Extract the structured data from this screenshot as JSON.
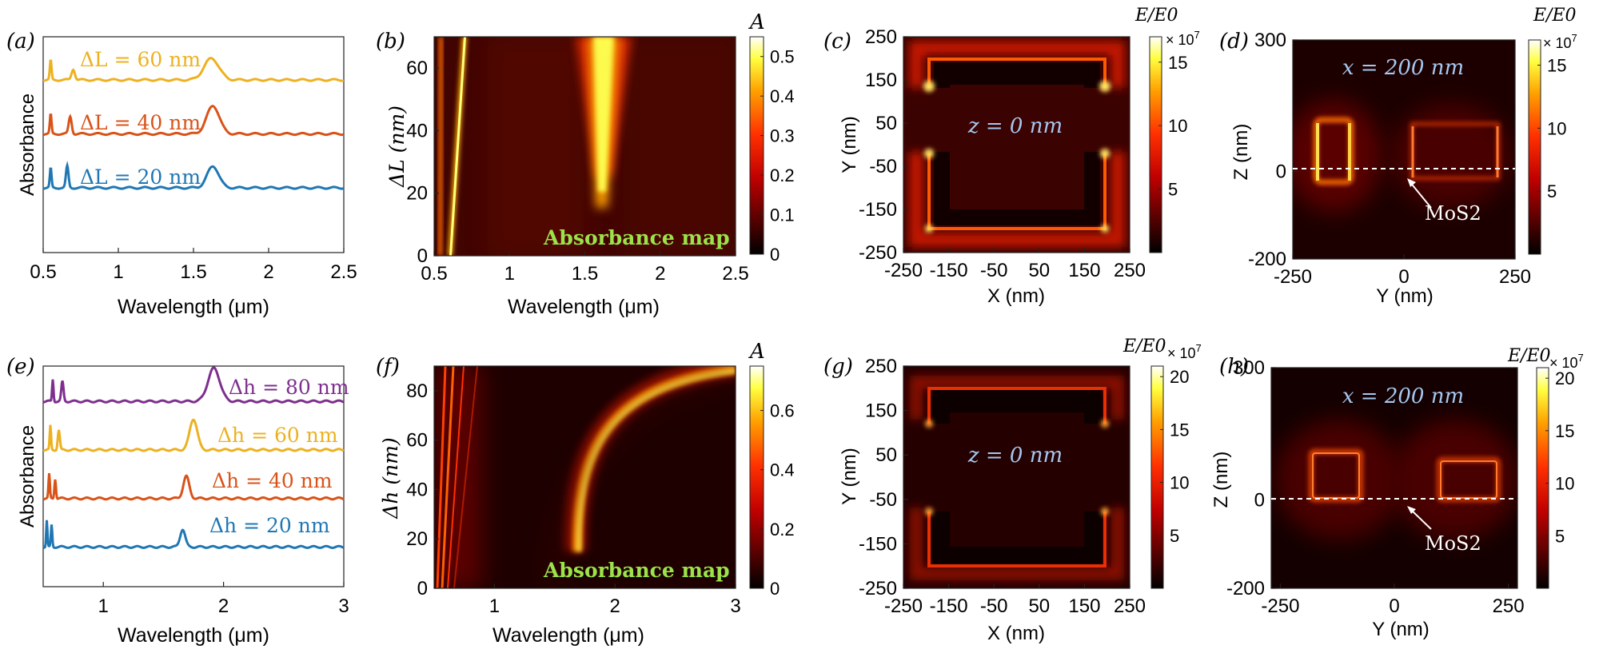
{
  "colors": {
    "blue": "#1f77b4",
    "orange": "#d95319",
    "yellow": "#edb120",
    "purple": "#7e2f8e",
    "green_text": "#9be34a",
    "light_blue_text": "#a6c8f0",
    "white_text": "#ffffff"
  },
  "chart_data": [
    {
      "panel": "(a)",
      "type": "line",
      "ylabel": "Absorbance",
      "xlabel": "Wavelength (μm)",
      "xlim": [
        0.5,
        2.5
      ],
      "xticks": [
        "0.5",
        "1",
        "1.5",
        "2",
        "2.5"
      ],
      "series": [
        {
          "name": "ΔL = 20 nm",
          "color": "#1f77b4",
          "baseline": 0.3,
          "peaks": [
            [
              0.55,
              0.09,
              0.008
            ],
            [
              0.66,
              0.1,
              0.012
            ],
            [
              1.63,
              0.1,
              0.055
            ]
          ]
        },
        {
          "name": "ΔL = 40 nm",
          "color": "#d95319",
          "baseline": 0.55,
          "peaks": [
            [
              0.55,
              0.09,
              0.008
            ],
            [
              0.68,
              0.08,
              0.014
            ],
            [
              1.63,
              0.13,
              0.06
            ]
          ]
        },
        {
          "name": "ΔL = 60 nm",
          "color": "#edb120",
          "baseline": 0.8,
          "peaks": [
            [
              0.55,
              0.09,
              0.008
            ],
            [
              0.7,
              0.05,
              0.016
            ],
            [
              1.62,
              0.1,
              0.07
            ]
          ]
        }
      ]
    },
    {
      "panel": "(b)",
      "type": "heatmap",
      "ylabel": "ΔL (nm)",
      "xlabel": "Wavelength (μm)",
      "xlim": [
        0.5,
        2.5
      ],
      "ylim": [
        0,
        70
      ],
      "xticks": [
        "0.5",
        "1",
        "1.5",
        "2",
        "2.5"
      ],
      "yticks": [
        "0",
        "20",
        "40",
        "60"
      ],
      "colorbar": {
        "label": "A",
        "ticks": [
          "0",
          "0.1",
          "0.2",
          "0.3",
          "0.4",
          "0.5"
        ],
        "max": 0.55
      },
      "annotation": "Absorbance map"
    },
    {
      "panel": "(c)",
      "type": "heatmap",
      "ylabel": "Y (nm)",
      "xlabel": "X (nm)",
      "xticks": [
        "-250",
        "-150",
        "-50",
        "50",
        "150",
        "250"
      ],
      "yticks": [
        "250",
        "150",
        "50",
        "-50",
        "-150",
        "-250"
      ],
      "colorbar": {
        "label": "E/E0",
        "multiplier": "× 10",
        "exponent": "7",
        "ticks": [
          "5",
          "10",
          "15"
        ],
        "max": 17
      },
      "annotation": "z = 0 nm"
    },
    {
      "panel": "(d)",
      "type": "heatmap",
      "ylabel": "Z (nm)",
      "xlabel": "Y (nm)",
      "xticks": [
        "-250",
        "0",
        "250"
      ],
      "yticks": [
        "300",
        "0",
        "-200"
      ],
      "colorbar": {
        "label": "E/E0",
        "multiplier": "× 10",
        "exponent": "7",
        "ticks": [
          "5",
          "10",
          "15"
        ],
        "max": 17
      },
      "annotation": "x = 200 nm",
      "arrow_label": "MoS2"
    },
    {
      "panel": "(e)",
      "type": "line",
      "ylabel": "Absorbance",
      "xlabel": "Wavelength (μm)",
      "xlim": [
        0.5,
        3
      ],
      "xticks": [
        "1",
        "2",
        "3"
      ],
      "series": [
        {
          "name": "Δh = 20  nm",
          "color": "#1f77b4",
          "baseline": 0.18,
          "peaks": [
            [
              0.53,
              0.12,
              0.007
            ],
            [
              0.57,
              0.1,
              0.008
            ],
            [
              1.66,
              0.08,
              0.03
            ]
          ]
        },
        {
          "name": "Δh = 40 nm",
          "color": "#d95319",
          "baseline": 0.4,
          "peaks": [
            [
              0.55,
              0.11,
              0.008
            ],
            [
              0.6,
              0.09,
              0.009
            ],
            [
              1.69,
              0.1,
              0.035
            ]
          ]
        },
        {
          "name": "Δh = 60 nm",
          "color": "#edb120",
          "baseline": 0.62,
          "peaks": [
            [
              0.56,
              0.11,
              0.008
            ],
            [
              0.63,
              0.09,
              0.012
            ],
            [
              1.75,
              0.14,
              0.045
            ]
          ]
        },
        {
          "name": "Δh = 80 nm",
          "color": "#7e2f8e",
          "baseline": 0.84,
          "peaks": [
            [
              0.58,
              0.1,
              0.008
            ],
            [
              0.66,
              0.09,
              0.013
            ],
            [
              1.92,
              0.15,
              0.07
            ]
          ]
        }
      ]
    },
    {
      "panel": "(f)",
      "type": "heatmap",
      "ylabel": "Δh (nm)",
      "xlabel": "Wavelength (μm)",
      "xlim": [
        0.5,
        3
      ],
      "ylim": [
        0,
        90
      ],
      "xticks": [
        "1",
        "2",
        "3"
      ],
      "yticks": [
        "0",
        "20",
        "40",
        "60",
        "80"
      ],
      "colorbar": {
        "label": "A",
        "ticks": [
          "0",
          "0.2",
          "0.4",
          "0.6"
        ],
        "max": 0.75
      },
      "annotation": "Absorbance map"
    },
    {
      "panel": "(g)",
      "type": "heatmap",
      "ylabel": "Y (nm)",
      "xlabel": "X (nm)",
      "xticks": [
        "-250",
        "-150",
        "-50",
        "50",
        "150",
        "250"
      ],
      "yticks": [
        "250",
        "150",
        "50",
        "-50",
        "-150",
        "-250"
      ],
      "colorbar": {
        "label": "E/E0",
        "multiplier": "× 10",
        "exponent": "7",
        "ticks": [
          "5",
          "10",
          "15",
          "20"
        ],
        "max": 21
      },
      "annotation": "z = 0 nm"
    },
    {
      "panel": "(h)",
      "type": "heatmap",
      "ylabel": "Z (nm)",
      "xlabel": "Y (nm)",
      "xticks": [
        "-250",
        "0",
        "250"
      ],
      "yticks": [
        "300",
        "0",
        "-200"
      ],
      "colorbar": {
        "label": "E/E0",
        "multiplier": "× 10",
        "exponent": "7",
        "ticks": [
          "5",
          "10",
          "15",
          "20"
        ],
        "max": 21
      },
      "annotation": "x = 200 nm",
      "arrow_label": "MoS2"
    }
  ]
}
